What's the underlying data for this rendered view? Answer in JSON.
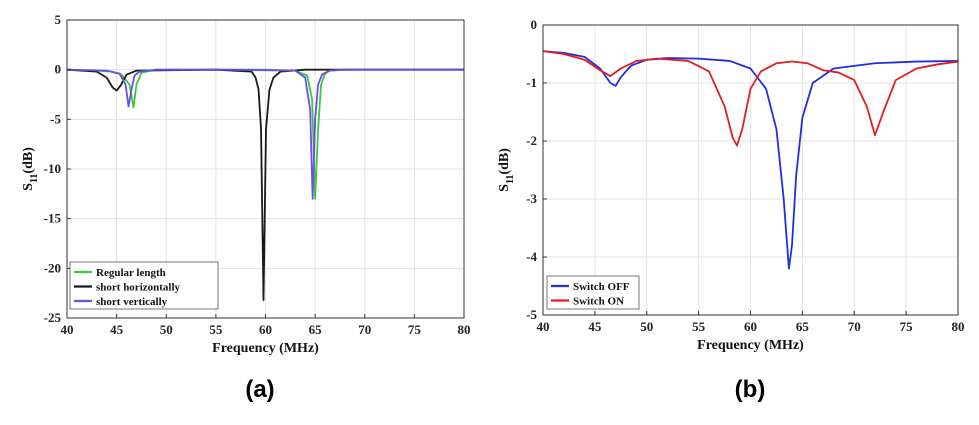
{
  "chart_data": [
    {
      "panel": "(a)",
      "type": "line",
      "xlabel": "Frequency (MHz)",
      "ylabel": {
        "main": "S",
        "sub": "11",
        "unit": "(dB)"
      },
      "xlim": [
        40,
        80
      ],
      "ylim": [
        -25,
        5
      ],
      "xticks": [
        40,
        45,
        50,
        55,
        60,
        65,
        70,
        75,
        80
      ],
      "yticks": [
        5,
        0,
        -5,
        -10,
        -15,
        -20,
        -25
      ],
      "grid": true,
      "legend_position": "bottom-left",
      "series": [
        {
          "name": "Regular length",
          "color": "#3cc83c",
          "x": [
            40,
            43,
            44.5,
            45.5,
            46.3,
            46.7,
            47.0,
            47.5,
            49,
            55,
            60,
            63,
            64.2,
            64.7,
            65.0,
            65.3,
            65.6,
            66.0,
            66.5,
            68,
            80
          ],
          "y": [
            0,
            -0.1,
            -0.2,
            -0.5,
            -1.5,
            -3.8,
            -1.5,
            -0.3,
            0,
            0,
            0,
            -0.1,
            -0.6,
            -3,
            -13,
            -6,
            -1.5,
            -0.4,
            -0.1,
            0,
            0
          ]
        },
        {
          "name": "short horizontally",
          "color": "#1a1a1a",
          "x": [
            40,
            43,
            44.0,
            44.6,
            45.0,
            45.4,
            46.0,
            47,
            55,
            58.6,
            59.0,
            59.3,
            59.55,
            59.8,
            60.05,
            60.4,
            60.8,
            61.5,
            64,
            80
          ],
          "y": [
            0,
            -0.2,
            -0.8,
            -1.8,
            -2.1,
            -1.6,
            -0.5,
            -0.1,
            0,
            -0.2,
            -0.8,
            -2,
            -6,
            -23.2,
            -6,
            -2,
            -0.8,
            -0.2,
            0,
            0
          ]
        },
        {
          "name": "short vertically",
          "color": "#6a4ee6",
          "x": [
            40,
            44,
            45.3,
            45.9,
            46.2,
            46.5,
            46.8,
            47.3,
            49,
            56,
            63,
            64.0,
            64.5,
            64.75,
            65.0,
            65.3,
            65.7,
            66.4,
            68,
            80
          ],
          "y": [
            0,
            -0.1,
            -0.4,
            -1.5,
            -3.7,
            -2,
            -0.6,
            -0.2,
            0,
            0,
            -0.1,
            -0.8,
            -4,
            -13,
            -5,
            -1.5,
            -0.5,
            -0.1,
            0,
            0
          ]
        }
      ]
    },
    {
      "panel": "(b)",
      "type": "line",
      "xlabel": "Frequency (MHz)",
      "ylabel": {
        "main": "S",
        "sub": "11",
        "unit": "(dB)"
      },
      "xlim": [
        40,
        80
      ],
      "ylim": [
        -5,
        0
      ],
      "xticks": [
        40,
        45,
        50,
        55,
        60,
        65,
        70,
        75,
        80
      ],
      "yticks": [
        0,
        -1,
        -2,
        -3,
        -4,
        -5
      ],
      "grid": true,
      "legend_position": "bottom-left",
      "series": [
        {
          "name": "Switch OFF",
          "color": "#1f2fe0",
          "x": [
            40,
            42,
            44,
            45.5,
            46.5,
            47.0,
            47.5,
            48.5,
            50,
            52,
            55,
            58,
            60,
            61.5,
            62.5,
            63.2,
            63.7,
            64.0,
            64.4,
            65,
            66,
            68,
            72,
            76,
            80
          ],
          "y": [
            -0.45,
            -0.48,
            -0.55,
            -0.75,
            -1.0,
            -1.05,
            -0.9,
            -0.7,
            -0.6,
            -0.57,
            -0.58,
            -0.62,
            -0.75,
            -1.1,
            -1.8,
            -3.0,
            -4.2,
            -3.8,
            -2.6,
            -1.6,
            -1.0,
            -0.75,
            -0.66,
            -0.63,
            -0.62
          ]
        },
        {
          "name": "Switch ON",
          "color": "#e01e1e",
          "x": [
            40,
            42,
            44,
            45.5,
            46.5,
            47.5,
            49,
            51,
            54,
            56,
            57.5,
            58.3,
            58.7,
            59.2,
            60,
            61,
            62.5,
            64,
            65.5,
            67,
            68.5,
            70,
            71.2,
            72.0,
            72.8,
            74,
            76,
            78,
            80
          ],
          "y": [
            -0.45,
            -0.5,
            -0.6,
            -0.78,
            -0.88,
            -0.75,
            -0.62,
            -0.58,
            -0.62,
            -0.8,
            -1.4,
            -1.95,
            -2.08,
            -1.8,
            -1.1,
            -0.8,
            -0.66,
            -0.63,
            -0.66,
            -0.78,
            -0.82,
            -0.95,
            -1.4,
            -1.9,
            -1.5,
            -0.95,
            -0.75,
            -0.68,
            -0.63
          ]
        }
      ]
    }
  ],
  "captions": [
    "(a)",
    "(b)"
  ]
}
